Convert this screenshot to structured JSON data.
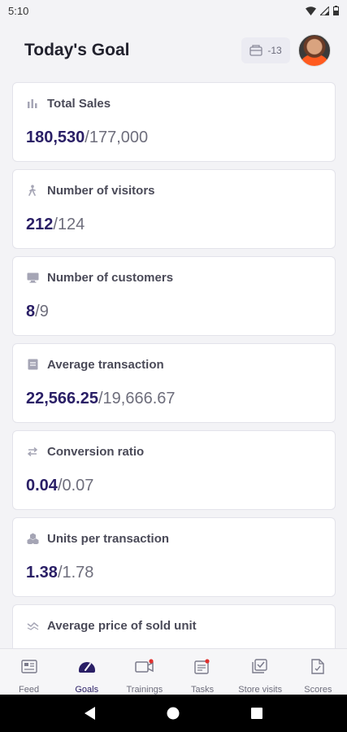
{
  "status_bar": {
    "time": "5:10",
    "icons": [
      "wifi-icon",
      "signal-icon",
      "battery-icon"
    ]
  },
  "header": {
    "title": "Today's Goal",
    "ticket_count": "-13",
    "icons": [
      "ticket-icon"
    ]
  },
  "cards": [
    {
      "label": "Total Sales",
      "icon": "bar-chart-icon",
      "value": "180,530",
      "separator": "/",
      "target": "177,000"
    },
    {
      "label": "Number of visitors",
      "icon": "walking-person-icon",
      "value": "212",
      "separator": "/",
      "target": "124"
    },
    {
      "label": "Number of customers",
      "icon": "monitor-icon",
      "value": "8",
      "separator": "/",
      "target": "9"
    },
    {
      "label": "Average transaction",
      "icon": "receipt-icon",
      "value": "22,566.25",
      "separator": "/",
      "target": "19,666.67"
    },
    {
      "label": "Conversion ratio",
      "icon": "swap-arrows-icon",
      "value": "0.04",
      "separator": "/",
      "target": "0.07"
    },
    {
      "label": "Units per transaction",
      "icon": "boxes-icon",
      "value": "1.38",
      "separator": "/",
      "target": "1.78"
    },
    {
      "label": "Average price of sold unit",
      "icon": "trend-icon",
      "value": "",
      "separator": "",
      "target": ""
    }
  ],
  "bottom_nav": {
    "items": [
      {
        "label": "Feed",
        "icon": "feed-icon",
        "active": false
      },
      {
        "label": "Goals",
        "icon": "gauge-icon",
        "active": true
      },
      {
        "label": "Trainings",
        "icon": "video-icon",
        "active": false
      },
      {
        "label": "Tasks",
        "icon": "tasks-icon",
        "active": false
      },
      {
        "label": "Store visits",
        "icon": "checklist-icon",
        "active": false
      },
      {
        "label": "Scores",
        "icon": "document-icon",
        "active": false
      }
    ]
  },
  "colors": {
    "accent": "#2a1f66",
    "notification": "#e0302e",
    "card_bg": "#ffffff",
    "page_bg": "#f3f3f6"
  }
}
